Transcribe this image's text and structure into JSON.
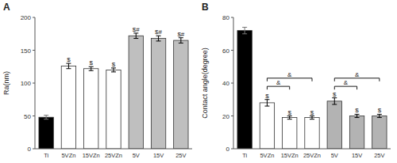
{
  "chart_data": [
    {
      "type": "bar",
      "title": "A",
      "categories": [
        "Ti",
        "5VZn",
        "15VZn",
        "25VZn",
        "5V",
        "15V",
        "25V"
      ],
      "values": [
        48,
        126,
        122,
        120,
        172,
        168,
        165
      ],
      "errors": [
        3,
        4,
        3,
        3,
        4,
        4,
        4
      ],
      "colors": [
        "#000000",
        "#ffffff",
        "#ffffff",
        "#ffffff",
        "#bfbfbf",
        "#bfbfbf",
        "#bfbfbf"
      ],
      "y_label": "Ra(nm)",
      "ylim": [
        0,
        200
      ],
      "yticks": [
        0,
        50,
        100,
        150,
        200
      ],
      "annotations": [
        {
          "category": "5VZn",
          "text": "$"
        },
        {
          "category": "15VZn",
          "text": "$"
        },
        {
          "category": "25VZn",
          "text": "$"
        },
        {
          "category": "5V",
          "text": "$#"
        },
        {
          "category": "15V",
          "text": "$#"
        },
        {
          "category": "25V",
          "text": "$#"
        }
      ]
    },
    {
      "type": "bar",
      "title": "B",
      "categories": [
        "Ti",
        "5VZn",
        "15VZn",
        "25VZn",
        "5V",
        "15V",
        "25V"
      ],
      "values": [
        72,
        28,
        19,
        19,
        29,
        20,
        20
      ],
      "errors": [
        2,
        2,
        1,
        1,
        2,
        1,
        1
      ],
      "colors": [
        "#000000",
        "#ffffff",
        "#ffffff",
        "#ffffff",
        "#b3b3b3",
        "#b3b3b3",
        "#b3b3b3"
      ],
      "y_label": "Contact angle(degree)",
      "ylim": [
        0,
        80
      ],
      "yticks": [
        0,
        20,
        40,
        60,
        80
      ],
      "annotations": [
        {
          "category": "5VZn",
          "text": "$"
        },
        {
          "category": "15VZn",
          "text": "$"
        },
        {
          "category": "25VZn",
          "text": "$"
        },
        {
          "category": "5V",
          "text": "$"
        },
        {
          "category": "15V",
          "text": "$"
        },
        {
          "category": "25V",
          "text": "$"
        }
      ],
      "brackets": [
        {
          "from": "5VZn",
          "to": "15VZn",
          "y": 38,
          "label": "&"
        },
        {
          "from": "5VZn",
          "to": "25VZn",
          "y": 43,
          "label": "&"
        },
        {
          "from": "5V",
          "to": "15V",
          "y": 38,
          "label": "&"
        },
        {
          "from": "5V",
          "to": "25V",
          "y": 43,
          "label": "&"
        }
      ]
    }
  ]
}
